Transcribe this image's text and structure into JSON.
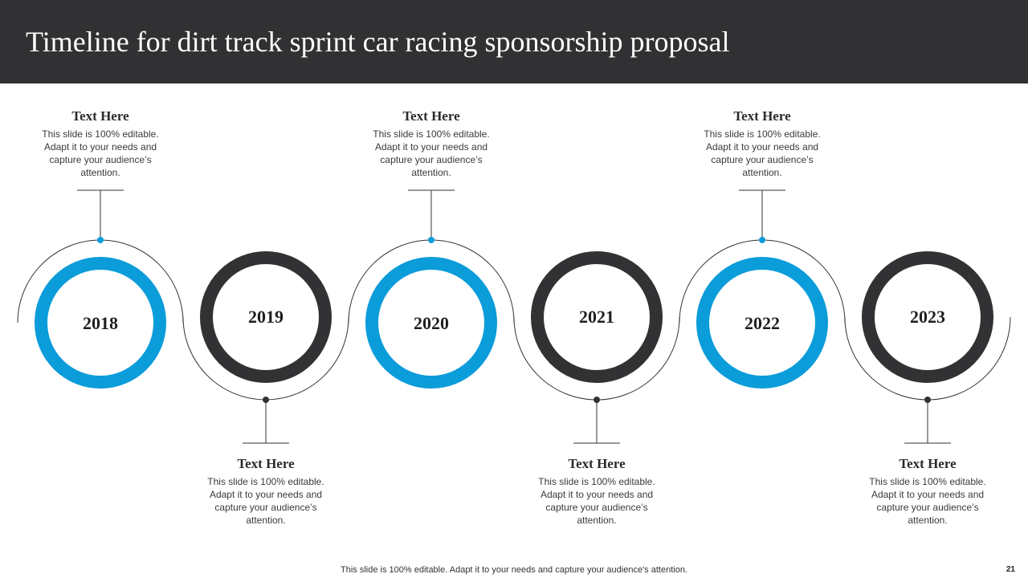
{
  "header": {
    "title": "Timeline for dirt track sprint car racing sponsorship proposal"
  },
  "colors": {
    "header_bg": "#313133",
    "blue": "#0b9cda",
    "dark": "#323234",
    "connector": "#333333"
  },
  "timeline": [
    {
      "year": "2018",
      "ring_color": "blue",
      "text_side": "top",
      "heading": "Text Here",
      "body": "This slide is 100% editable. Adapt it to your needs and capture your audience’s attention."
    },
    {
      "year": "2019",
      "ring_color": "dark",
      "text_side": "bottom",
      "heading": "Text Here",
      "body": "This slide is 100% editable. Adapt it to your needs and capture your audience’s attention."
    },
    {
      "year": "2020",
      "ring_color": "blue",
      "text_side": "top",
      "heading": "Text Here",
      "body": "This slide is 100% editable. Adapt it to your needs and capture your audience’s attention."
    },
    {
      "year": "2021",
      "ring_color": "dark",
      "text_side": "bottom",
      "heading": "Text Here",
      "body": "This slide is 100% editable. Adapt it to your needs and capture your audience’s attention."
    },
    {
      "year": "2022",
      "ring_color": "blue",
      "text_side": "top",
      "heading": "Text Here",
      "body": "This slide is 100% editable. Adapt it to your needs and capture your audience’s attention."
    },
    {
      "year": "2023",
      "ring_color": "dark",
      "text_side": "bottom",
      "heading": "Text Here",
      "body": "This slide is 100% editable. Adapt it to your needs and capture your audience’s attention."
    }
  ],
  "footer": {
    "text": "This slide is 100% editable. Adapt it to your needs and capture your audience's attention.",
    "page_number": "21"
  }
}
